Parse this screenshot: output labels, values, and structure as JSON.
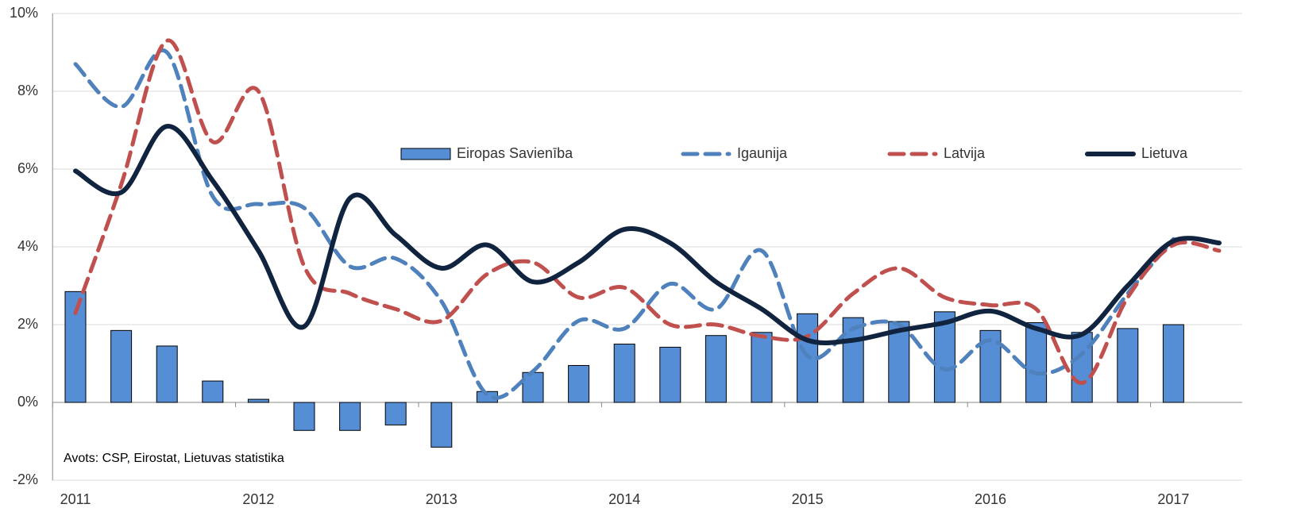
{
  "chart_data": {
    "type": "bar_line",
    "categories": [
      "2011",
      null,
      null,
      null,
      "2012",
      null,
      null,
      null,
      "2013",
      null,
      null,
      null,
      "2014",
      null,
      null,
      null,
      "2015",
      null,
      null,
      null,
      "2016",
      null,
      null,
      null,
      "2017",
      null
    ],
    "series": [
      {
        "name": "Eiropas Savienība",
        "type": "bar",
        "color": "#558ed5",
        "values": [
          2.85,
          1.85,
          1.45,
          0.55,
          0.08,
          -0.72,
          -0.72,
          -0.58,
          -1.15,
          0.28,
          0.77,
          0.95,
          1.5,
          1.42,
          1.72,
          1.8,
          2.28,
          2.18,
          2.08,
          2.33,
          1.85,
          2.05,
          1.8,
          1.9,
          2.0,
          null
        ]
      },
      {
        "name": "Igaunija",
        "type": "line",
        "dash": true,
        "color": "#4f81bd",
        "values": [
          8.7,
          7.6,
          9.0,
          5.3,
          5.1,
          5.0,
          3.5,
          3.7,
          2.6,
          0.2,
          0.8,
          2.1,
          1.9,
          3.05,
          2.4,
          3.9,
          1.2,
          1.9,
          2.0,
          0.85,
          1.6,
          0.75,
          1.25,
          2.8,
          4.2,
          null
        ]
      },
      {
        "name": "Latvija",
        "type": "line",
        "dash": true,
        "color": "#c0504d",
        "values": [
          2.3,
          5.6,
          9.3,
          6.7,
          8.0,
          3.5,
          2.8,
          2.4,
          2.1,
          3.3,
          3.6,
          2.7,
          2.95,
          2.0,
          2.0,
          1.7,
          1.7,
          2.8,
          3.45,
          2.7,
          2.5,
          2.4,
          0.5,
          2.7,
          4.05,
          3.9
        ]
      },
      {
        "name": "Lietuva",
        "type": "line",
        "dash": false,
        "color": "#10243f",
        "values": [
          5.95,
          5.4,
          7.1,
          5.7,
          3.9,
          1.95,
          5.25,
          4.3,
          3.45,
          4.05,
          3.1,
          3.6,
          4.45,
          4.1,
          3.1,
          2.4,
          1.6,
          1.6,
          1.85,
          2.05,
          2.35,
          1.9,
          1.75,
          3.0,
          4.15,
          4.1
        ]
      }
    ],
    "ylim": [
      -2,
      10
    ],
    "yticks": [
      {
        "value": -2,
        "label": "-2%"
      },
      {
        "value": 0,
        "label": "0%"
      },
      {
        "value": 2,
        "label": "2%"
      },
      {
        "value": 4,
        "label": "4%"
      },
      {
        "value": 6,
        "label": "6%"
      },
      {
        "value": 8,
        "label": "8%"
      },
      {
        "value": 10,
        "label": "10%"
      }
    ],
    "grid": true,
    "legend": "top",
    "annotation": "Avots: CSP, Eirostat, Lietuvas statistika"
  }
}
